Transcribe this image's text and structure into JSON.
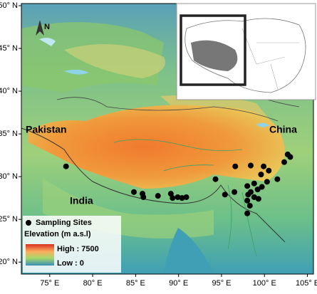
{
  "map": {
    "lon_lim": [
      71.7,
      105.7
    ],
    "lat_lim": [
      18.6,
      50.25
    ],
    "lon_ticks": [
      {
        "value": 75,
        "label": "75° E"
      },
      {
        "value": 80,
        "label": "80° E"
      },
      {
        "value": 85,
        "label": "85° E"
      },
      {
        "value": 90,
        "label": "90° E"
      },
      {
        "value": 95,
        "label": "95° E"
      },
      {
        "value": 100,
        "label": "100° E"
      },
      {
        "value": 105,
        "label": "105° E"
      }
    ],
    "lat_ticks": [
      {
        "value": 20,
        "label": "20° N"
      },
      {
        "value": 25,
        "label": "25° N"
      },
      {
        "value": 30,
        "label": "30° N"
      },
      {
        "value": 35,
        "label": "35° N"
      },
      {
        "value": 40,
        "label": "40° N"
      },
      {
        "value": 45,
        "label": "45° N"
      },
      {
        "value": 50,
        "label": "50° N"
      }
    ],
    "north": "N",
    "countries": [
      "Pakistan",
      "China",
      "India"
    ],
    "legend": {
      "sites": "Sampling Sites",
      "elevation": "Elevation (m a.s.l)",
      "high": "High : 7500",
      "low": "Low : 0"
    },
    "sampling_sites": [
      [
        76.9,
        31.2
      ],
      [
        84.8,
        28.2
      ],
      [
        85.8,
        28.0
      ],
      [
        85.9,
        27.6
      ],
      [
        87.6,
        27.75
      ],
      [
        89.1,
        28.0
      ],
      [
        89.3,
        27.5
      ],
      [
        89.9,
        27.6
      ],
      [
        90.4,
        27.5
      ],
      [
        90.9,
        27.6
      ],
      [
        94.3,
        29.7
      ],
      [
        96.6,
        31.2
      ],
      [
        98.4,
        31.3
      ],
      [
        99.9,
        31.2
      ],
      [
        99.6,
        30.25
      ],
      [
        98.0,
        28.9
      ],
      [
        98.8,
        29.2
      ],
      [
        99.2,
        28.5
      ],
      [
        98.4,
        28.2
      ],
      [
        98.1,
        27.9
      ],
      [
        98.8,
        27.6
      ],
      [
        98.0,
        27.2
      ],
      [
        99.3,
        27.4
      ],
      [
        99.7,
        28.8
      ],
      [
        100.3,
        29.4
      ],
      [
        100.5,
        30.7
      ],
      [
        101.5,
        29.7
      ],
      [
        102.3,
        31.7
      ],
      [
        102.7,
        32.6
      ],
      [
        103.0,
        32.3
      ],
      [
        98.0,
        25.7
      ],
      [
        98.3,
        26.6
      ],
      [
        96.5,
        28.2
      ],
      [
        95.4,
        27.9
      ]
    ]
  }
}
